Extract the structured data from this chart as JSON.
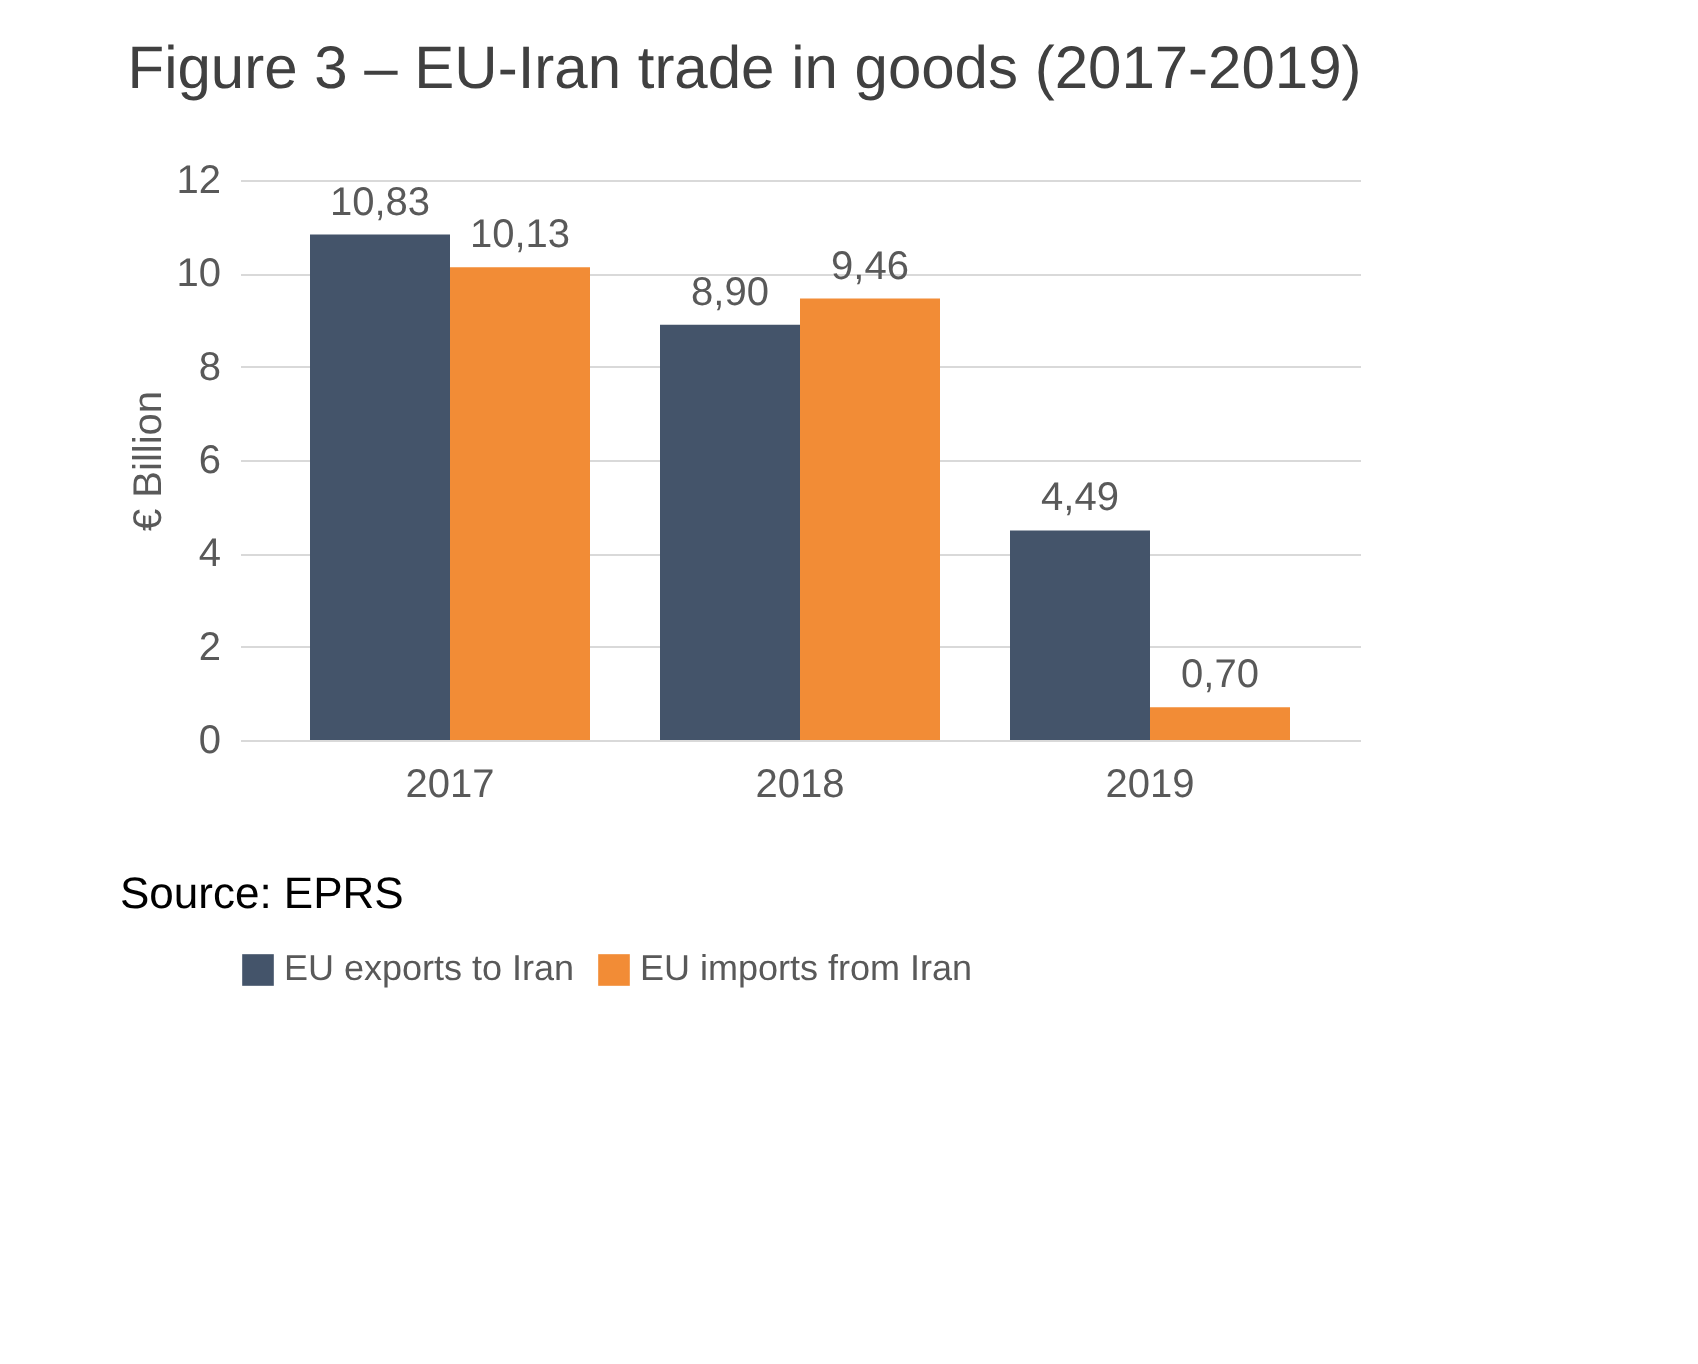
{
  "chart_data": {
    "type": "bar",
    "title": "Figure 3 – EU-Iran trade in goods (2017-2019)",
    "ylabel": "€ Billion",
    "categories": [
      "2017",
      "2018",
      "2019"
    ],
    "series": [
      {
        "name": "EU exports to Iran",
        "color": "#44546a",
        "values": [
          10.83,
          8.9,
          4.49
        ],
        "value_labels": [
          "10,83",
          "8,90",
          "4,49"
        ]
      },
      {
        "name": "EU imports from Iran",
        "color": "#f28c36",
        "values": [
          10.13,
          9.46,
          0.7
        ],
        "value_labels": [
          "10,13",
          "9,46",
          "0,70"
        ]
      }
    ],
    "ylim": [
      0,
      12
    ],
    "yticks": [
      0,
      2,
      4,
      6,
      8,
      10,
      12
    ],
    "grid": "y",
    "legend": "bottom",
    "annotations": [
      "Source: EPRS"
    ]
  }
}
